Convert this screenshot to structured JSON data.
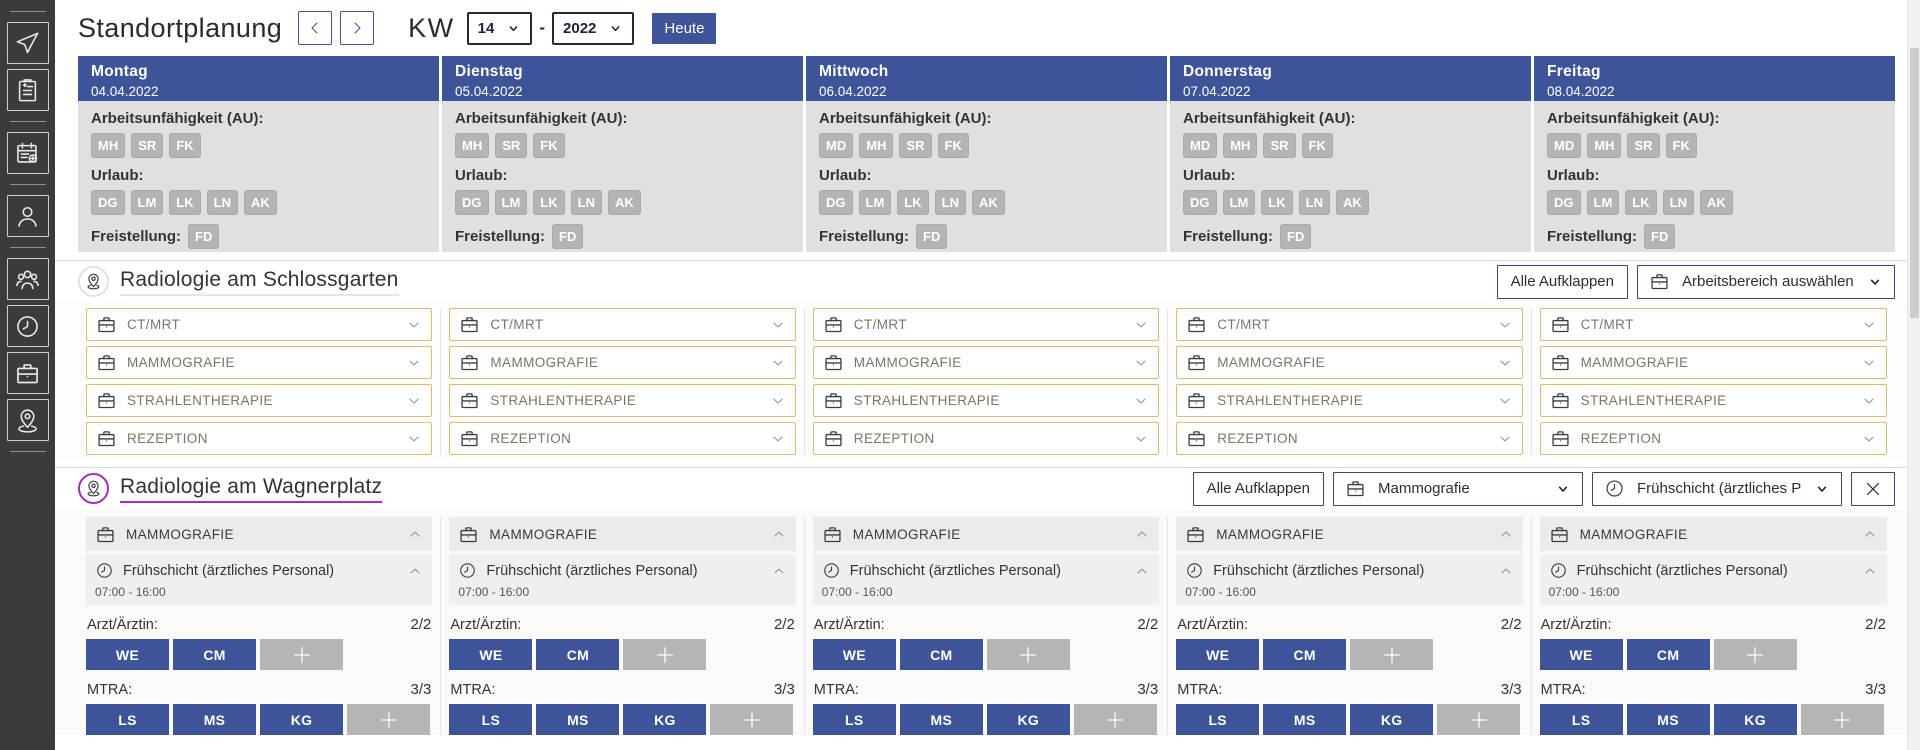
{
  "header": {
    "title": "Standortplanung",
    "week_label": "KW",
    "week_value": "14",
    "range_separator": "-",
    "year_value": "2022",
    "today_label": "Heute"
  },
  "sidebar": {
    "items": [
      "divider",
      "airplane",
      "clipboard-add",
      "divider",
      "calendar-add",
      "divider",
      "person",
      "divider",
      "people-group",
      "clock",
      "briefcase",
      "location-pin",
      "divider"
    ]
  },
  "days": [
    {
      "name": "Montag",
      "date": "04.04.2022",
      "au_label": "Arbeitsunfähigkeit (AU):",
      "au": [
        "MH",
        "SR",
        "FK"
      ],
      "urlaub_label": "Urlaub:",
      "urlaub": [
        "DG",
        "LM",
        "LK",
        "LN",
        "AK"
      ],
      "freistellung_label": "Freistellung:",
      "freistellung": [
        "FD"
      ]
    },
    {
      "name": "Dienstag",
      "date": "05.04.2022",
      "au_label": "Arbeitsunfähigkeit (AU):",
      "au": [
        "MH",
        "SR",
        "FK"
      ],
      "urlaub_label": "Urlaub:",
      "urlaub": [
        "DG",
        "LM",
        "LK",
        "LN",
        "AK"
      ],
      "freistellung_label": "Freistellung:",
      "freistellung": [
        "FD"
      ]
    },
    {
      "name": "Mittwoch",
      "date": "06.04.2022",
      "au_label": "Arbeitsunfähigkeit (AU):",
      "au": [
        "MD",
        "MH",
        "SR",
        "FK"
      ],
      "urlaub_label": "Urlaub:",
      "urlaub": [
        "DG",
        "LM",
        "LK",
        "LN",
        "AK"
      ],
      "freistellung_label": "Freistellung:",
      "freistellung": [
        "FD"
      ]
    },
    {
      "name": "Donnerstag",
      "date": "07.04.2022",
      "au_label": "Arbeitsunfähigkeit (AU):",
      "au": [
        "MD",
        "MH",
        "SR",
        "FK"
      ],
      "urlaub_label": "Urlaub:",
      "urlaub": [
        "DG",
        "LM",
        "LK",
        "LN",
        "AK"
      ],
      "freistellung_label": "Freistellung:",
      "freistellung": [
        "FD"
      ]
    },
    {
      "name": "Freitag",
      "date": "08.04.2022",
      "au_label": "Arbeitsunfähigkeit (AU):",
      "au": [
        "MD",
        "MH",
        "SR",
        "FK"
      ],
      "urlaub_label": "Urlaub:",
      "urlaub": [
        "DG",
        "LM",
        "LK",
        "LN",
        "AK"
      ],
      "freistellung_label": "Freistellung:",
      "freistellung": [
        "FD"
      ]
    }
  ],
  "sections": [
    {
      "title": "Radiologie am Schlossgarten",
      "expand_all_label": "Alle Aufklappen",
      "area_filter_value": "Arbeitsbereich auswählen",
      "areas": [
        "CT/MRT",
        "MAMMOGRAFIE",
        "STRAHLENTHERAPIE",
        "REZEPTION"
      ]
    },
    {
      "title": "Radiologie am Wagnerplatz",
      "expand_all_label": "Alle Aufklappen",
      "area_filter_value": "Mammografie",
      "shift_filter_value": "Frühschicht (ärztliches Personal)",
      "panel": {
        "area": "MAMMOGRAFIE",
        "shift": "Frühschicht (ärztliches Personal)",
        "time": "07:00 - 16:00",
        "groups": [
          {
            "label": "Arzt/Ärztin:",
            "count": "2/2",
            "members": [
              "WE",
              "CM"
            ]
          },
          {
            "label": "MTRA:",
            "count": "3/3",
            "members": [
              "LS",
              "MS",
              "KG"
            ]
          }
        ]
      }
    }
  ],
  "colors": {
    "accent_navy": "#3d5499",
    "badge_gray": "#b4b4b4",
    "gold_border": "#debb6e",
    "active_purple": "#a233b5",
    "sidebar_bg": "#3b3b3b",
    "panel_gray": "#e0e0e0"
  }
}
